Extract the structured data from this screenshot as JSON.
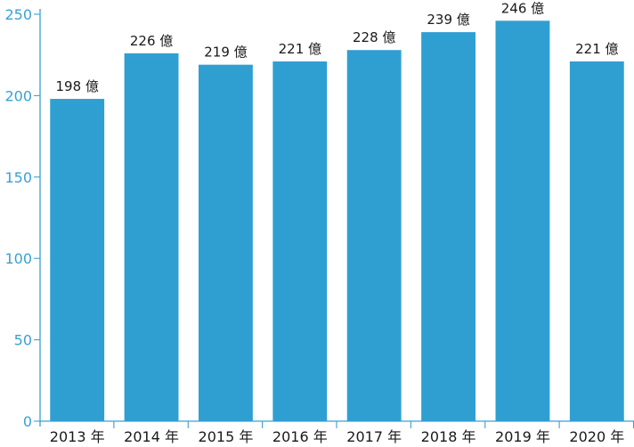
{
  "chart_data": {
    "type": "bar",
    "categories": [
      "2013 年",
      "2014 年",
      "2015 年",
      "2016 年",
      "2017 年",
      "2018 年",
      "2019 年",
      "2020 年"
    ],
    "values": [
      198,
      226,
      219,
      221,
      228,
      239,
      246,
      221
    ],
    "data_labels": [
      "198 億",
      "226 億",
      "219 億",
      "221 億",
      "228 億",
      "239 億",
      "246 億",
      "221 億"
    ],
    "ylim": [
      0,
      250
    ],
    "yticks": [
      0,
      50,
      100,
      150,
      200,
      250
    ],
    "title": "",
    "xlabel": "",
    "ylabel": "",
    "grid": false,
    "bar_color": "#2f9fd2",
    "axis_color": "#3aa0d3"
  }
}
